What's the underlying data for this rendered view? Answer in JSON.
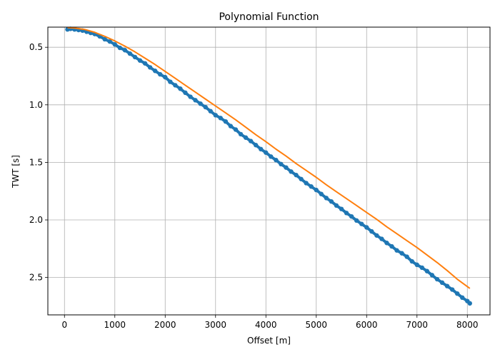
{
  "chart_data": {
    "type": "scatter",
    "title": "Polynomial Function",
    "xlabel": "Offset [m]",
    "ylabel": "TWT [s]",
    "xlim": [
      -330,
      8450
    ],
    "ylim": [
      2.825,
      0.325
    ],
    "y_inverted": true,
    "grid": true,
    "x_ticks": [
      0,
      1000,
      2000,
      3000,
      4000,
      5000,
      6000,
      7000,
      8000
    ],
    "x_tick_labels": [
      "0",
      "1000",
      "2000",
      "3000",
      "4000",
      "5000",
      "6000",
      "7000",
      "8000"
    ],
    "y_ticks": [
      0.5,
      1.0,
      1.5,
      2.0,
      2.5
    ],
    "y_tick_labels": [
      "0.5",
      "1.0",
      "1.5",
      "2.0",
      "2.5"
    ],
    "series": [
      {
        "kind": "points",
        "color": "#1f77b4",
        "x": [
          60,
          120,
          200,
          280,
          360,
          440,
          520,
          600,
          700,
          800,
          900,
          1000,
          1100,
          1200,
          1300,
          1400,
          1500,
          1600,
          1700,
          1800,
          1900,
          2000,
          2100,
          2200,
          2300,
          2400,
          2500,
          2600,
          2700,
          2800,
          2900,
          3000,
          3100,
          3200,
          3300,
          3400,
          3500,
          3600,
          3700,
          3800,
          3900,
          4000,
          4100,
          4200,
          4300,
          4400,
          4500,
          4600,
          4700,
          4800,
          4900,
          5000,
          5100,
          5200,
          5300,
          5400,
          5500,
          5600,
          5700,
          5800,
          5900,
          6000,
          6100,
          6200,
          6300,
          6400,
          6500,
          6600,
          6700,
          6800,
          6900,
          7000,
          7100,
          7200,
          7300,
          7400,
          7500,
          7600,
          7700,
          7800,
          7900,
          8000,
          8050
        ],
        "y": [
          0.345,
          0.34,
          0.345,
          0.35,
          0.355,
          0.365,
          0.375,
          0.385,
          0.405,
          0.43,
          0.45,
          0.475,
          0.505,
          0.525,
          0.555,
          0.585,
          0.615,
          0.64,
          0.675,
          0.705,
          0.735,
          0.76,
          0.8,
          0.83,
          0.86,
          0.895,
          0.93,
          0.96,
          0.99,
          1.02,
          1.055,
          1.09,
          1.115,
          1.145,
          1.185,
          1.215,
          1.255,
          1.285,
          1.315,
          1.35,
          1.385,
          1.415,
          1.45,
          1.48,
          1.515,
          1.545,
          1.58,
          1.61,
          1.645,
          1.68,
          1.71,
          1.74,
          1.775,
          1.81,
          1.84,
          1.875,
          1.905,
          1.94,
          1.97,
          2.005,
          2.035,
          2.065,
          2.1,
          2.135,
          2.165,
          2.2,
          2.23,
          2.265,
          2.29,
          2.32,
          2.36,
          2.39,
          2.415,
          2.445,
          2.48,
          2.515,
          2.545,
          2.575,
          2.605,
          2.64,
          2.675,
          2.705,
          2.725
        ]
      },
      {
        "kind": "line",
        "color": "#ff7f0e",
        "x": [
          60,
          200,
          400,
          600,
          800,
          1000,
          1200,
          1400,
          1600,
          1800,
          2000,
          2200,
          2400,
          2600,
          2800,
          3000,
          3200,
          3400,
          3600,
          3800,
          4000,
          4200,
          4400,
          4600,
          4800,
          5000,
          5200,
          5400,
          5600,
          5800,
          6000,
          6200,
          6400,
          6600,
          6800,
          7000,
          7200,
          7400,
          7600,
          7800,
          8050
        ],
        "y": [
          0.33,
          0.333,
          0.345,
          0.37,
          0.405,
          0.445,
          0.49,
          0.54,
          0.595,
          0.65,
          0.71,
          0.77,
          0.83,
          0.89,
          0.95,
          1.01,
          1.07,
          1.13,
          1.195,
          1.26,
          1.32,
          1.385,
          1.445,
          1.51,
          1.57,
          1.63,
          1.695,
          1.755,
          1.815,
          1.875,
          1.935,
          1.995,
          2.06,
          2.12,
          2.18,
          2.24,
          2.305,
          2.37,
          2.44,
          2.515,
          2.595
        ]
      }
    ]
  }
}
